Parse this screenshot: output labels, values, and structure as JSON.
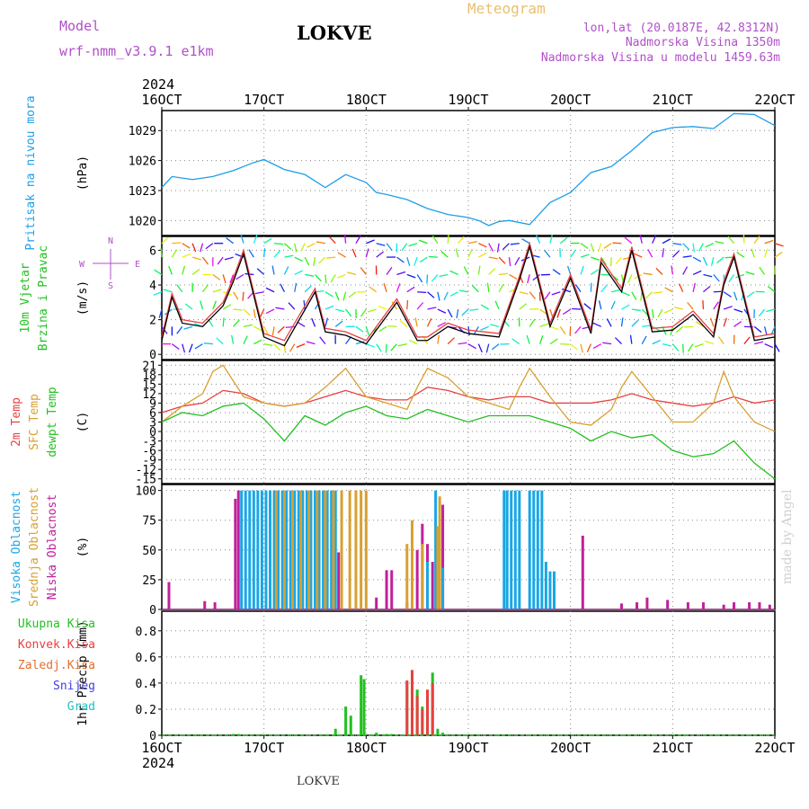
{
  "header": {
    "model_label": "Model",
    "model_name": "wrf-nmm_v3.9.1  e1km",
    "station": "LOKVE",
    "title": "Meteogram",
    "coords": "lon,lat (20.0187E, 42.8312N)",
    "elevation": "Nadmorska Visina 1350m",
    "model_elevation": "Nadmorska Visina u modelu 1459.63m",
    "footer_station": "LOKVE",
    "credit": "made by Angel"
  },
  "colors": {
    "pressure": "#1e9ee8",
    "temp2m": "#e84040",
    "sfc": "#d8a030",
    "dewpt": "#22c020",
    "wind_spd": "#e84040",
    "wind_spd2": "#000000",
    "high_cloud": "#1aa6e6",
    "mid_cloud": "#d8a030",
    "low_cloud": "#c0209a",
    "precip_total": "#22c020",
    "precip_conv": "#e84040",
    "snow": "#4040e0"
  },
  "chart_data": {
    "type": "line",
    "year": "2024",
    "x_ticks": [
      "16OCT",
      "17OCT",
      "18OCT",
      "19OCT",
      "20OCT",
      "21OCT",
      "22OCT"
    ],
    "panels": [
      {
        "id": "pressure",
        "ylabel": "(hPa)",
        "side_labels": [
          "Pritisak na nivou mora"
        ],
        "yticks": [
          "1020",
          "1023",
          "1026",
          "1029"
        ],
        "ylim": [
          1018.5,
          1031.0
        ],
        "series": [
          {
            "color": "pressure",
            "x": [
              0,
              0.1,
              0.3,
              0.5,
              0.7,
              0.9,
              1.0,
              1.2,
              1.4,
              1.6,
              1.8,
              2.0,
              2.1,
              2.2,
              2.4,
              2.6,
              2.8,
              3.0,
              3.1,
              3.2,
              3.3,
              3.4,
              3.6,
              3.8,
              4.0,
              4.2,
              4.4,
              4.6,
              4.8,
              5.0,
              5.2,
              5.4,
              5.6,
              5.8,
              6.0
            ],
            "y": [
              1023.3,
              1024.4,
              1024.1,
              1024.4,
              1025.0,
              1025.8,
              1026.1,
              1025.1,
              1024.6,
              1023.3,
              1024.6,
              1023.8,
              1022.8,
              1022.6,
              1022.1,
              1021.2,
              1020.6,
              1020.3,
              1020.0,
              1019.5,
              1019.9,
              1020.0,
              1019.6,
              1021.8,
              1022.8,
              1024.8,
              1025.4,
              1027.0,
              1028.8,
              1029.3,
              1029.4,
              1029.2,
              1030.7,
              1030.6,
              1029.5
            ]
          }
        ]
      },
      {
        "id": "wind",
        "ylabel": "(m/s)",
        "side_labels": [
          "10m Vjetar",
          "Brzina i Pravac"
        ],
        "direction_key": [
          "N",
          "E",
          "S",
          "W"
        ],
        "yticks": [
          "0",
          "2",
          "4",
          "6"
        ],
        "ylim": [
          -0.3,
          6.8
        ],
        "series": [
          {
            "color": "wind_spd",
            "x": [
              0,
              0.1,
              0.2,
              0.4,
              0.6,
              0.7,
              0.8,
              1.0,
              1.2,
              1.5,
              1.6,
              1.8,
              2.0,
              2.3,
              2.5,
              2.6,
              2.8,
              3.0,
              3.3,
              3.5,
              3.6,
              3.8,
              4.0,
              4.2,
              4.3,
              4.5,
              4.6,
              4.8,
              5.0,
              5.2,
              5.4,
              5.5,
              5.6,
              5.8,
              6.0
            ],
            "y": [
              1.0,
              3.5,
              2.0,
              1.8,
              3.0,
              4.4,
              6.0,
              1.2,
              0.8,
              3.8,
              1.5,
              1.3,
              0.8,
              3.2,
              1.0,
              1.0,
              1.8,
              1.4,
              1.2,
              4.5,
              6.4,
              1.8,
              4.6,
              1.4,
              5.5,
              3.8,
              6.2,
              1.5,
              1.6,
              2.5,
              1.2,
              4.2,
              5.8,
              1.0,
              1.2
            ]
          },
          {
            "color": "wind_spd2",
            "x": [
              0,
              0.1,
              0.2,
              0.4,
              0.6,
              0.7,
              0.8,
              1.0,
              1.2,
              1.5,
              1.6,
              1.8,
              2.0,
              2.3,
              2.5,
              2.6,
              2.8,
              3.0,
              3.3,
              3.5,
              3.6,
              3.8,
              4.0,
              4.2,
              4.3,
              4.5,
              4.6,
              4.8,
              5.0,
              5.2,
              5.4,
              5.5,
              5.6,
              5.8,
              6.0
            ],
            "y": [
              0.8,
              3.3,
              1.8,
              1.6,
              2.8,
              4.2,
              5.8,
              1.0,
              0.5,
              3.6,
              1.3,
              1.1,
              0.6,
              3.0,
              0.8,
              0.8,
              1.6,
              1.2,
              1.0,
              4.3,
              6.2,
              1.6,
              4.4,
              1.2,
              5.3,
              3.6,
              6.0,
              1.3,
              1.4,
              2.3,
              1.0,
              4.0,
              5.6,
              0.8,
              1.0
            ]
          }
        ]
      },
      {
        "id": "temp",
        "ylabel": "(C)",
        "side_labels": [
          "2m Temp",
          "SFC Temp",
          "dewpt Temp"
        ],
        "yticks": [
          "21",
          "18",
          "15",
          "12",
          "9",
          "6",
          "3",
          "0",
          "-3",
          "-6",
          "-9",
          "-12",
          "-15"
        ],
        "ylim": [
          -16.5,
          22.5
        ],
        "series": [
          {
            "color": "temp2m",
            "x": [
              0,
              0.2,
              0.4,
              0.6,
              0.8,
              1.0,
              1.2,
              1.4,
              1.6,
              1.8,
              2.0,
              2.2,
              2.4,
              2.6,
              2.8,
              3.0,
              3.2,
              3.4,
              3.6,
              3.8,
              4.0,
              4.2,
              4.4,
              4.6,
              4.8,
              5.0,
              5.2,
              5.4,
              5.6,
              5.8,
              6.0
            ],
            "y": [
              6,
              8,
              9,
              13,
              12,
              9,
              8,
              9,
              11,
              13,
              11,
              10,
              10,
              14,
              13,
              11,
              10,
              11,
              11,
              9,
              9,
              9,
              10,
              12,
              10,
              9,
              8,
              9,
              11,
              9,
              10
            ]
          },
          {
            "color": "sfc",
            "x": [
              0,
              0.2,
              0.4,
              0.5,
              0.6,
              0.8,
              1.0,
              1.2,
              1.4,
              1.6,
              1.8,
              2.0,
              2.2,
              2.4,
              2.5,
              2.6,
              2.8,
              3.0,
              3.2,
              3.4,
              3.5,
              3.6,
              3.8,
              4.0,
              4.2,
              4.4,
              4.5,
              4.6,
              4.8,
              5.0,
              5.2,
              5.4,
              5.5,
              5.6,
              5.8,
              6.0
            ],
            "y": [
              3,
              8,
              12,
              19,
              21,
              11,
              9,
              8,
              9,
              14,
              20,
              11,
              9,
              7,
              14,
              20,
              17,
              11,
              9,
              7,
              14,
              20,
              11,
              3,
              2,
              7,
              14,
              19,
              11,
              3,
              3,
              9,
              19,
              11,
              3,
              0
            ]
          },
          {
            "color": "dewpt",
            "x": [
              0,
              0.2,
              0.4,
              0.6,
              0.8,
              1.0,
              1.2,
              1.4,
              1.6,
              1.8,
              2.0,
              2.2,
              2.4,
              2.6,
              2.8,
              3.0,
              3.2,
              3.4,
              3.6,
              3.8,
              4.0,
              4.2,
              4.4,
              4.6,
              4.8,
              5.0,
              5.2,
              5.4,
              5.6,
              5.8,
              6.0
            ],
            "y": [
              3,
              6,
              5,
              8,
              9,
              4,
              -3,
              5,
              2,
              6,
              8,
              5,
              4,
              7,
              5,
              3,
              5,
              5,
              5,
              3,
              1,
              -3,
              0,
              -2,
              -1,
              -6,
              -8,
              -7,
              -3,
              -10,
              -15
            ]
          }
        ]
      },
      {
        "id": "cloud",
        "type": "bar",
        "ylabel": "(%)",
        "side_labels": [
          "Visoka Oblacnost",
          "Srednja Oblacnost",
          "Niska Oblacnost"
        ],
        "yticks": [
          "0",
          "25",
          "50",
          "75",
          "100"
        ],
        "ylim": [
          0,
          105
        ],
        "series": [
          {
            "color": "low_cloud",
            "x": [
              0.07,
              0.42,
              0.52,
              0.72,
              0.75,
              1.73,
              2.1,
              2.2,
              2.25,
              2.4,
              2.5,
              2.55,
              2.6,
              2.65,
              2.75,
              4.12,
              4.5,
              4.65,
              4.75,
              4.95,
              5.15,
              5.3,
              5.5,
              5.6,
              5.75,
              5.85,
              5.95
            ],
            "y": [
              23,
              7,
              6,
              93,
              100,
              48,
              10,
              33,
              33,
              6,
              50,
              72,
              55,
              40,
              88,
              62,
              5,
              6,
              10,
              8,
              6,
              6,
              4,
              6,
              6,
              6,
              4
            ]
          },
          {
            "color": "high_cloud",
            "x": [
              0.78,
              0.82,
              0.86,
              0.9,
              0.94,
              0.98,
              1.02,
              1.06,
              1.1,
              1.14,
              1.18,
              1.22,
              1.26,
              1.3,
              1.34,
              1.38,
              1.42,
              1.46,
              1.5,
              1.54,
              1.58,
              1.62,
              1.66,
              1.7,
              2.6,
              2.68,
              2.75,
              3.35,
              3.38,
              3.42,
              3.46,
              3.5,
              3.6,
              3.64,
              3.68,
              3.72,
              3.76,
              3.8,
              3.84
            ],
            "y": [
              100,
              100,
              100,
              100,
              100,
              100,
              100,
              100,
              100,
              100,
              100,
              100,
              100,
              100,
              100,
              100,
              100,
              100,
              100,
              100,
              100,
              100,
              100,
              100,
              40,
              100,
              35,
              100,
              100,
              100,
              100,
              100,
              100,
              100,
              100,
              100,
              40,
              32,
              32
            ]
          },
          {
            "color": "mid_cloud",
            "x": [
              1.12,
              1.2,
              1.28,
              1.36,
              1.44,
              1.52,
              1.6,
              1.68,
              1.76,
              1.84,
              1.9,
              1.95,
              2.0,
              2.4,
              2.45,
              2.55,
              2.7,
              2.72
            ],
            "y": [
              100,
              100,
              100,
              100,
              100,
              100,
              100,
              100,
              100,
              100,
              100,
              100,
              100,
              55,
              75,
              55,
              70,
              95
            ]
          }
        ]
      },
      {
        "id": "precip",
        "type": "bar",
        "ylabel": "1hr Precip (mm)",
        "side_labels": [
          "Ukupna Kisa",
          "Konvek.Kisa",
          "Zaledj.Kisa",
          "Snijeg",
          "Grad"
        ],
        "yticks": [
          "0",
          "0.2",
          "0.4",
          "0.6",
          "0.8"
        ],
        "ylim": [
          0,
          0.95
        ],
        "series": [
          {
            "color": "precip_total",
            "x": [
              0.7,
              0.75,
              1.7,
              1.8,
              1.85,
              1.95,
              1.98,
              2.1,
              2.2,
              2.25,
              2.4,
              2.45,
              2.5,
              2.55,
              2.6,
              2.65,
              2.7,
              2.75
            ],
            "y": [
              0.01,
              0.01,
              0.05,
              0.22,
              0.15,
              0.46,
              0.43,
              0.02,
              0.01,
              0.01,
              0.4,
              0.45,
              0.35,
              0.22,
              0.33,
              0.48,
              0.05,
              0.02
            ]
          },
          {
            "color": "precip_conv",
            "x": [
              2.4,
              2.45,
              2.5,
              2.55,
              2.6,
              2.65
            ],
            "y": [
              0.42,
              0.5,
              0.3,
              0.2,
              0.35,
              0.4
            ]
          }
        ]
      }
    ]
  }
}
